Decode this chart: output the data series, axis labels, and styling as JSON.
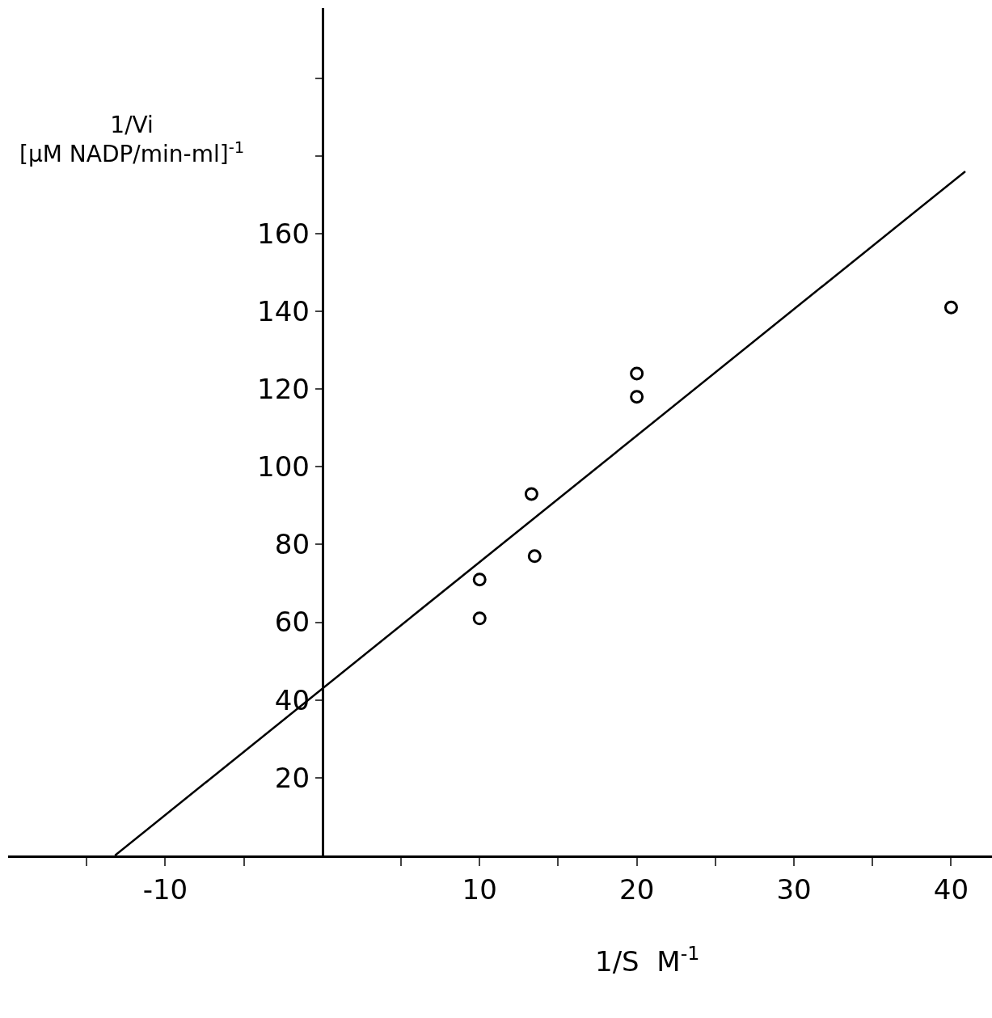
{
  "chart_data": {
    "type": "scatter",
    "xlabel": "1/S  M$^{-1}$",
    "ylabel": "1/Vi  [µM NADP/min-ml]$^{-1}$",
    "x": [
      10,
      10,
      13.3,
      13.5,
      20,
      20,
      40
    ],
    "series": [
      {
        "color": "#000000",
        "marker": "circle",
        "values": [
          71,
          61,
          93,
          77,
          124,
          118,
          141
        ]
      },
      {
        "type": "line",
        "color": "#000000",
        "x": [
          -13.2,
          40.9
        ],
        "values": [
          0,
          176
        ],
        "marker": "none",
        "line_style": "solid"
      }
    ],
    "xlim": [
      -20,
      42.6
    ],
    "ylim": [
      0,
      218
    ],
    "xticks": [
      {
        "value": -15,
        "label": null
      },
      -10,
      {
        "value": -5,
        "label": null
      },
      {
        "value": 5,
        "label": null
      },
      10,
      {
        "value": 15,
        "label": null
      },
      20,
      {
        "value": 25,
        "label": null
      },
      30,
      {
        "value": 35,
        "label": null
      },
      40
    ],
    "yticks": [
      20,
      40,
      60,
      80,
      100,
      120,
      140,
      160,
      {
        "value": 180,
        "label": null
      },
      {
        "value": 200,
        "label": null
      }
    ]
  }
}
